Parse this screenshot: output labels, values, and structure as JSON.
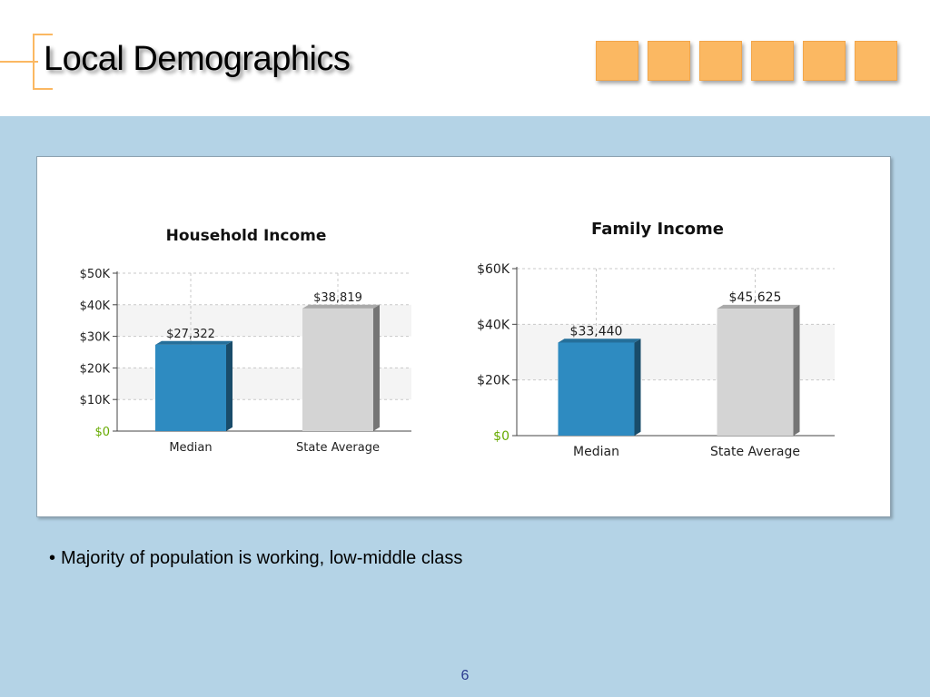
{
  "slide": {
    "title": "Local Demographics",
    "accent_color": "#fbb862",
    "background_color": "#b4d3e6",
    "tile_count": 6,
    "bullets": [
      "Majority of population is working, low-middle class"
    ],
    "page_number": "6"
  },
  "chart_data": [
    {
      "type": "bar",
      "title": "Household Income",
      "categories": [
        "Median",
        "State Average"
      ],
      "values": [
        27322,
        38819
      ],
      "value_labels": [
        "$27,322",
        "$38,819"
      ],
      "colors": [
        "#2e8bc1",
        "#d4d4d4"
      ],
      "ylim": [
        0,
        50000
      ],
      "yticks": [
        0,
        10000,
        20000,
        30000,
        40000,
        50000
      ],
      "ytick_labels": [
        "$0",
        "$10K",
        "$20K",
        "$30K",
        "$40K",
        "$50K"
      ],
      "zero_label_color": "#66aa00",
      "xlabel": "",
      "ylabel": "",
      "grid": true
    },
    {
      "type": "bar",
      "title": "Family Income",
      "categories": [
        "Median",
        "State Average"
      ],
      "values": [
        33440,
        45625
      ],
      "value_labels": [
        "$33,440",
        "$45,625"
      ],
      "colors": [
        "#2e8bc1",
        "#d4d4d4"
      ],
      "ylim": [
        0,
        60000
      ],
      "yticks": [
        0,
        20000,
        40000,
        60000
      ],
      "ytick_labels": [
        "$0",
        "$20K",
        "$40K",
        "$60K"
      ],
      "zero_label_color": "#66aa00",
      "xlabel": "",
      "ylabel": "",
      "grid": true
    }
  ]
}
